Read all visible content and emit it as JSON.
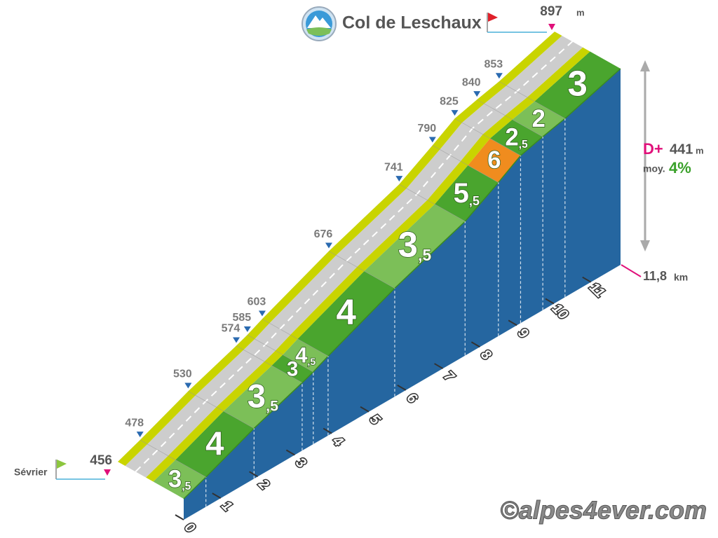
{
  "chart_data": {
    "type": "climb-profile",
    "title": "Col de Leschaux",
    "start_label": "Sévrier",
    "km": [
      0,
      0.6,
      1.9,
      3.2,
      3.5,
      3.9,
      5.7,
      7.6,
      8.5,
      9.1,
      9.7,
      10.3,
      11.8
    ],
    "altitudes": [
      456,
      478,
      530,
      574,
      585,
      603,
      676,
      741,
      790,
      825,
      840,
      853,
      897
    ],
    "gradients": [
      3.5,
      4,
      3.5,
      3,
      4.5,
      4,
      3.5,
      5.5,
      6,
      2.5,
      2,
      3
    ],
    "value_labels": [
      "3,5",
      "4",
      "3,5",
      "3",
      "4,5",
      "4",
      "3,5",
      "5,5",
      "6",
      "2,5",
      "2",
      "3"
    ],
    "colors": [
      "#7cbf58",
      "#4aa52e",
      "#7cbf58",
      "#4aa52e",
      "#7cbf58",
      "#4aa52e",
      "#7cbf58",
      "#4aa52e",
      "#f08c1e",
      "#4aa52e",
      "#7cbf58",
      "#4aa52e"
    ],
    "wall_color": "#2566a0",
    "xlim": [
      0,
      11.8
    ],
    "xticks": [
      0,
      1,
      2,
      3,
      4,
      5,
      6,
      7,
      8,
      9,
      10,
      11
    ],
    "altitude_unit": "m",
    "distance": {
      "value": 11.8,
      "label": "11,8"
    },
    "distance_unit": "km",
    "elevation_gain_label": "D+",
    "elevation_gain": 441,
    "average_label": "moy.",
    "average_gradient": {
      "value": 4,
      "label": "4%"
    }
  },
  "credit": "©alpes4ever.com"
}
